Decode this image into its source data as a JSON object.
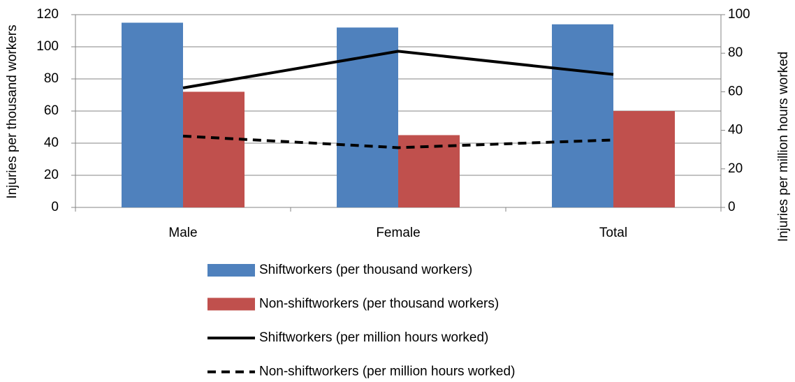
{
  "chart_data": {
    "type": "bar",
    "y_label": "Injuries per thousand workers",
    "y2_label": "Injuries per million hours worked",
    "categories": [
      "Male",
      "Female",
      "Total"
    ],
    "series": [
      {
        "name": "Shiftworkers (per thousand workers)",
        "type": "bar",
        "color": "#4f81bd",
        "values": [
          115,
          112,
          114
        ]
      },
      {
        "name": "Non-shiftworkers (per thousand workers)",
        "type": "bar",
        "color": "#c0504d",
        "values": [
          72,
          45,
          60
        ]
      },
      {
        "name": "Shiftworkers (per million hours worked)",
        "type": "line",
        "axis": "y2",
        "color": "#000000",
        "line_style": "solid",
        "values": [
          62,
          81,
          69
        ]
      },
      {
        "name": "Non-shiftworkers (per million hours worked)",
        "type": "line",
        "axis": "y2",
        "color": "#000000",
        "line_style": "dashed",
        "values": [
          37,
          31,
          35
        ]
      }
    ],
    "ylim": [
      0,
      120
    ],
    "yticks": [
      0,
      20,
      40,
      60,
      80,
      100,
      120
    ],
    "y2lim": [
      0,
      100
    ],
    "y2ticks": [
      0,
      20,
      40,
      60,
      80,
      100
    ],
    "grid": true,
    "legend": "bottom"
  }
}
